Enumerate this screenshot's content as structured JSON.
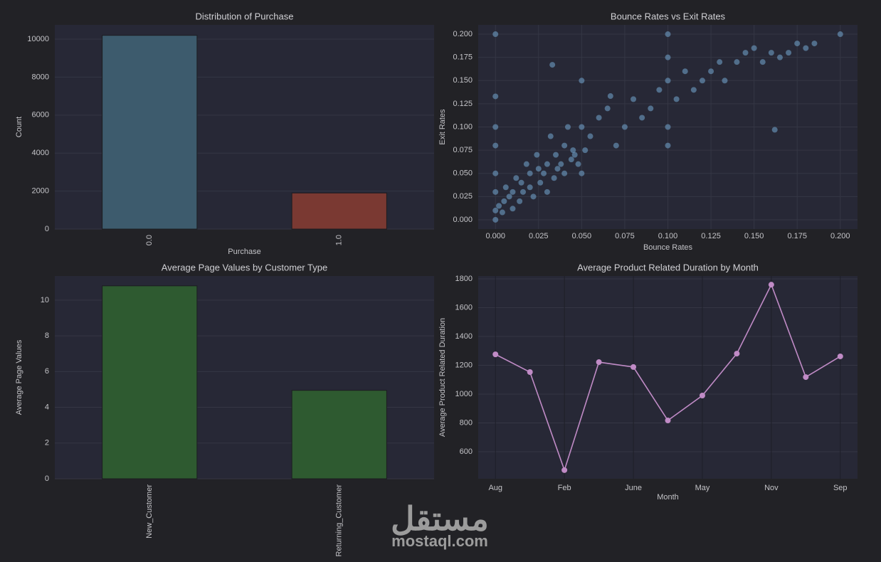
{
  "chart_data": [
    {
      "type": "bar",
      "title": "Distribution of Purchase",
      "xlabel": "Purchase",
      "ylabel": "Count",
      "categories": [
        "0.0",
        "1.0"
      ],
      "values": [
        10200,
        1900
      ],
      "colors": [
        "#3d5b6d",
        "#7a3932"
      ],
      "ylim": [
        0,
        10750
      ],
      "yticks": [
        0,
        2000,
        4000,
        6000,
        8000,
        10000
      ],
      "grid": true
    },
    {
      "type": "scatter",
      "title": "Bounce Rates vs Exit Rates",
      "xlabel": "Bounce Rates",
      "ylabel": "Exit Rates",
      "color": "#6e9cc4",
      "x": [
        0,
        0.2,
        0.1,
        0,
        0,
        0,
        0,
        0,
        0,
        0,
        0.005,
        0.01,
        0.015,
        0.02,
        0.025,
        0.03,
        0.035,
        0.04,
        0.045,
        0.05,
        0.05,
        0.05,
        0.055,
        0.06,
        0.065,
        0.0667,
        0.07,
        0.075,
        0.08,
        0.085,
        0.09,
        0.095,
        0.1,
        0.1,
        0.1,
        0.1,
        0.105,
        0.11,
        0.115,
        0.12,
        0.125,
        0.13,
        0.133,
        0.14,
        0.145,
        0.15,
        0.155,
        0.16,
        0.162,
        0.165,
        0.17,
        0.175,
        0.18,
        0.185,
        0.033,
        0.002,
        0.004,
        0.006,
        0.008,
        0.01,
        0.012,
        0.014,
        0.016,
        0.018,
        0.02,
        0.022,
        0.024,
        0.026,
        0.028,
        0.03,
        0.032,
        0.034,
        0.036,
        0.038,
        0.04,
        0.042,
        0.044,
        0.046,
        0.048,
        0.052
      ],
      "values": [
        0.2,
        0.2,
        0.2,
        0.133,
        0.1,
        0.08,
        0.05,
        0.03,
        0.01,
        0,
        0.02,
        0.03,
        0.04,
        0.05,
        0.055,
        0.06,
        0.07,
        0.08,
        0.075,
        0.1,
        0.15,
        0.05,
        0.09,
        0.11,
        0.12,
        0.1333,
        0.08,
        0.1,
        0.13,
        0.11,
        0.12,
        0.14,
        0.15,
        0.1,
        0.08,
        0.175,
        0.13,
        0.16,
        0.14,
        0.15,
        0.16,
        0.17,
        0.15,
        0.17,
        0.18,
        0.185,
        0.17,
        0.18,
        0.097,
        0.175,
        0.18,
        0.19,
        0.185,
        0.19,
        0.167,
        0.015,
        0.008,
        0.035,
        0.025,
        0.012,
        0.045,
        0.02,
        0.03,
        0.06,
        0.035,
        0.025,
        0.07,
        0.04,
        0.05,
        0.03,
        0.09,
        0.045,
        0.055,
        0.06,
        0.05,
        0.1,
        0.065,
        0.07,
        0.06,
        0.075
      ],
      "xlim": [
        -0.01,
        0.21
      ],
      "ylim": [
        -0.01,
        0.21
      ],
      "xticks": [
        {
          "value": 0,
          "label": "0.000"
        },
        {
          "value": 0.025,
          "label": "0.025"
        },
        {
          "value": 0.05,
          "label": "0.050"
        },
        {
          "value": 0.075,
          "label": "0.075"
        },
        {
          "value": 0.1,
          "label": "0.100"
        },
        {
          "value": 0.125,
          "label": "0.125"
        },
        {
          "value": 0.15,
          "label": "0.150"
        },
        {
          "value": 0.175,
          "label": "0.175"
        },
        {
          "value": 0.2,
          "label": "0.200"
        }
      ],
      "yticks": [
        {
          "value": 0,
          "label": "0.000"
        },
        {
          "value": 0.025,
          "label": "0.025"
        },
        {
          "value": 0.05,
          "label": "0.050"
        },
        {
          "value": 0.075,
          "label": "0.075"
        },
        {
          "value": 0.1,
          "label": "0.100"
        },
        {
          "value": 0.125,
          "label": "0.125"
        },
        {
          "value": 0.15,
          "label": "0.150"
        },
        {
          "value": 0.175,
          "label": "0.175"
        },
        {
          "value": 0.2,
          "label": "0.200"
        }
      ],
      "grid": true
    },
    {
      "type": "bar",
      "title": "Average Page Values by Customer Type",
      "ylabel": "Average Page Values",
      "categories": [
        "New_Customer",
        "Returning_Customer"
      ],
      "values": [
        10.8,
        4.95
      ],
      "colors": [
        "#2e5a30",
        "#2e5a30"
      ],
      "ylim": [
        0,
        11.35
      ],
      "yticks": [
        0,
        2,
        4,
        6,
        8,
        10
      ],
      "grid": true
    },
    {
      "type": "line",
      "title": "Average Product Related Duration by Month",
      "xlabel": "Month",
      "ylabel": "Average Product Related Duration",
      "color": "#c08bc6",
      "categories": [
        "Aug",
        null,
        "Feb",
        null,
        "June",
        null,
        "May",
        null,
        "Nov",
        null,
        "Sep"
      ],
      "values": [
        1276,
        1153,
        472,
        1222,
        1188,
        817,
        990,
        1281,
        1760,
        1118,
        1262
      ],
      "ylim": [
        412,
        1820
      ],
      "yticks": [
        600,
        800,
        1000,
        1200,
        1400,
        1600,
        1800
      ],
      "grid": true
    }
  ],
  "watermark": {
    "logo": "مستقل",
    "text": "mostaql.com"
  }
}
